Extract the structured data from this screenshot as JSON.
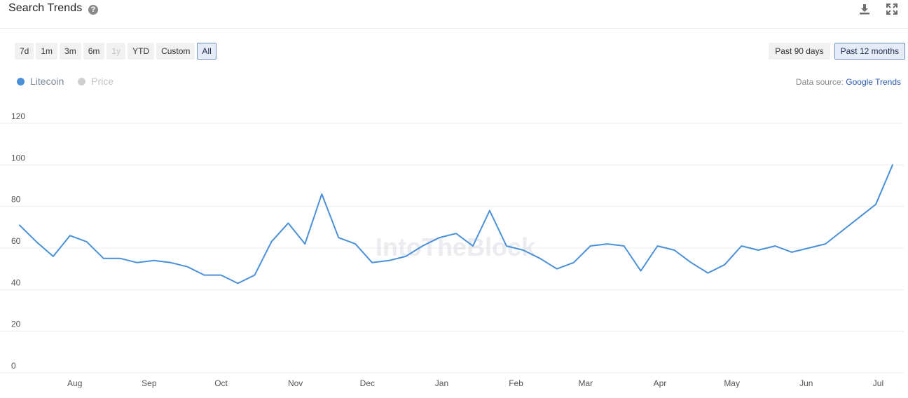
{
  "header": {
    "title": "Search Trends",
    "help_glyph": "?",
    "icons": [
      "help-icon",
      "download-icon",
      "expand-icon"
    ]
  },
  "ranges": [
    {
      "label": "7d",
      "state": "normal"
    },
    {
      "label": "1m",
      "state": "normal"
    },
    {
      "label": "3m",
      "state": "normal"
    },
    {
      "label": "6m",
      "state": "normal"
    },
    {
      "label": "1y",
      "state": "disabled"
    },
    {
      "label": "YTD",
      "state": "normal"
    },
    {
      "label": "Custom",
      "state": "normal"
    },
    {
      "label": "All",
      "state": "active"
    }
  ],
  "periods": [
    {
      "label": "Past 90 days",
      "state": "normal"
    },
    {
      "label": "Past 12 months",
      "state": "active"
    }
  ],
  "legend": [
    {
      "label": "Litecoin",
      "color": "#4a90d9",
      "active": true
    },
    {
      "label": "Price",
      "color": "#d0d0d0",
      "active": false
    }
  ],
  "source": {
    "prefix": "Data source: ",
    "link": "Google Trends"
  },
  "colors": {
    "line": "#4a90d9",
    "grid": "#ececec",
    "tick": "#555555",
    "watermark": "#d9dde3"
  },
  "watermark": "IntoTheBlock",
  "chart_data": {
    "type": "line",
    "title": "",
    "xlabel": "",
    "ylabel": "",
    "ylim": [
      0,
      120
    ],
    "yticks": [
      0,
      20,
      40,
      60,
      80,
      100,
      120
    ],
    "xlim": [
      "2023-07-09",
      "2024-07-07"
    ],
    "xticks": [
      {
        "label": "Aug",
        "date": "2023-08-01"
      },
      {
        "label": "Sep",
        "date": "2023-09-01"
      },
      {
        "label": "Oct",
        "date": "2023-10-01"
      },
      {
        "label": "Nov",
        "date": "2023-11-01"
      },
      {
        "label": "Dec",
        "date": "2023-12-01"
      },
      {
        "label": "Jan",
        "date": "2024-01-01"
      },
      {
        "label": "Feb",
        "date": "2024-02-01"
      },
      {
        "label": "Mar",
        "date": "2024-03-01"
      },
      {
        "label": "Apr",
        "date": "2024-04-01"
      },
      {
        "label": "May",
        "date": "2024-05-01"
      },
      {
        "label": "Jun",
        "date": "2024-06-01"
      },
      {
        "label": "Jul",
        "date": "2024-07-01"
      }
    ],
    "grid": true,
    "legend_position": "top-left",
    "series": [
      {
        "name": "Litecoin",
        "color": "#4a90d9",
        "x": [
          "2023-07-09",
          "2023-07-16",
          "2023-07-23",
          "2023-07-30",
          "2023-08-06",
          "2023-08-13",
          "2023-08-20",
          "2023-08-27",
          "2023-09-03",
          "2023-09-10",
          "2023-09-17",
          "2023-09-24",
          "2023-10-01",
          "2023-10-08",
          "2023-10-15",
          "2023-10-22",
          "2023-10-29",
          "2023-11-05",
          "2023-11-12",
          "2023-11-19",
          "2023-11-26",
          "2023-12-03",
          "2023-12-10",
          "2023-12-17",
          "2023-12-24",
          "2023-12-31",
          "2024-01-07",
          "2024-01-14",
          "2024-01-21",
          "2024-01-28",
          "2024-02-04",
          "2024-02-11",
          "2024-02-18",
          "2024-02-25",
          "2024-03-03",
          "2024-03-10",
          "2024-03-17",
          "2024-03-24",
          "2024-03-31",
          "2024-04-07",
          "2024-04-14",
          "2024-04-21",
          "2024-04-28",
          "2024-05-05",
          "2024-05-12",
          "2024-05-19",
          "2024-05-26",
          "2024-06-02",
          "2024-06-09",
          "2024-06-16",
          "2024-06-23",
          "2024-06-30",
          "2024-07-07"
        ],
        "y": [
          71,
          63,
          56,
          66,
          63,
          55,
          55,
          53,
          54,
          53,
          51,
          47,
          47,
          43,
          47,
          63,
          72,
          62,
          86,
          65,
          62,
          53,
          54,
          56,
          61,
          65,
          67,
          61,
          78,
          61,
          59,
          55,
          50,
          53,
          61,
          62,
          61,
          49,
          61,
          59,
          53,
          48,
          52,
          61,
          59,
          61,
          58,
          60,
          62,
          null,
          null,
          81,
          100
        ]
      }
    ]
  }
}
